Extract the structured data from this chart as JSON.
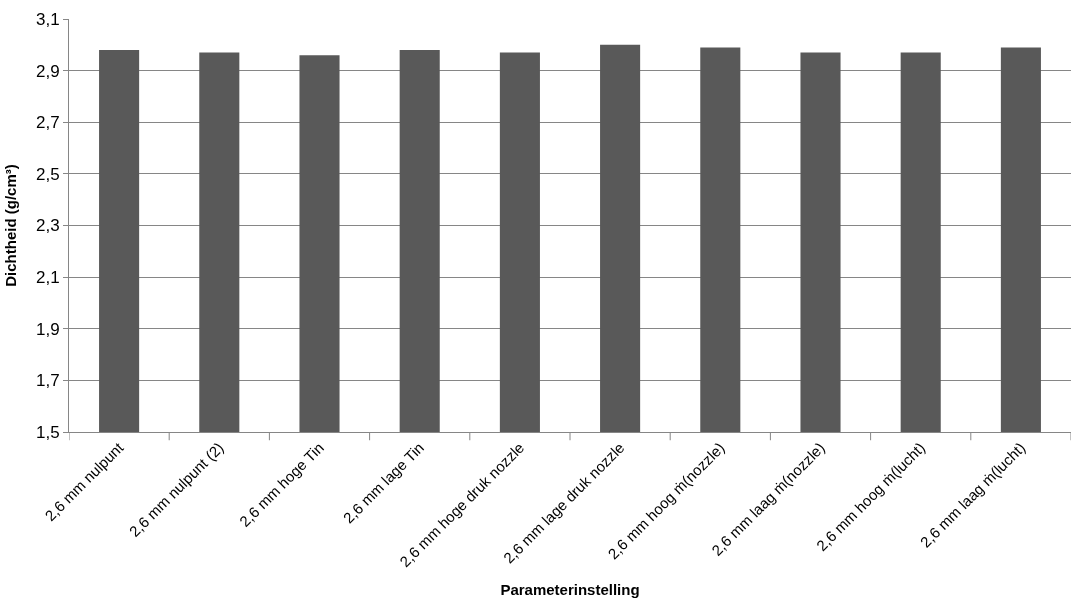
{
  "chart_data": {
    "type": "bar",
    "xlabel": "Parameterinstelling",
    "ylabel": "Dichtheid (g/cm³)",
    "categories": [
      "2,6 mm nulpunt",
      "2,6 mm nulpunt (2)",
      "2,6 mm hoge Tin",
      "2,6 mm lage Tin",
      "2,6 mm hoge druk nozzle",
      "2,6 mm lage druk nozzle",
      "2,6 mm hoog ṁ(nozzle)",
      "2,6 mm laag ṁ(nozzle)",
      "2,6 mm hoog ṁ(lucht)",
      "2,6 mm laag ṁ(lucht)"
    ],
    "values": [
      2.98,
      2.97,
      2.96,
      2.98,
      2.97,
      3.0,
      2.99,
      2.97,
      2.97,
      2.99
    ],
    "color": "#595959",
    "ylim": [
      1.5,
      3.1
    ],
    "yticks": [
      {
        "value": 1.5,
        "label": "1,5"
      },
      {
        "value": 1.7,
        "label": "1,7"
      },
      {
        "value": 1.9,
        "label": "1,9"
      },
      {
        "value": 2.1,
        "label": "2,1"
      },
      {
        "value": 2.3,
        "label": "2,3"
      },
      {
        "value": 2.5,
        "label": "2,5"
      },
      {
        "value": 2.7,
        "label": "2,7"
      },
      {
        "value": 2.9,
        "label": "2,9"
      },
      {
        "value": 3.1,
        "label": "3,1"
      }
    ],
    "grid": "y",
    "legend": false
  }
}
